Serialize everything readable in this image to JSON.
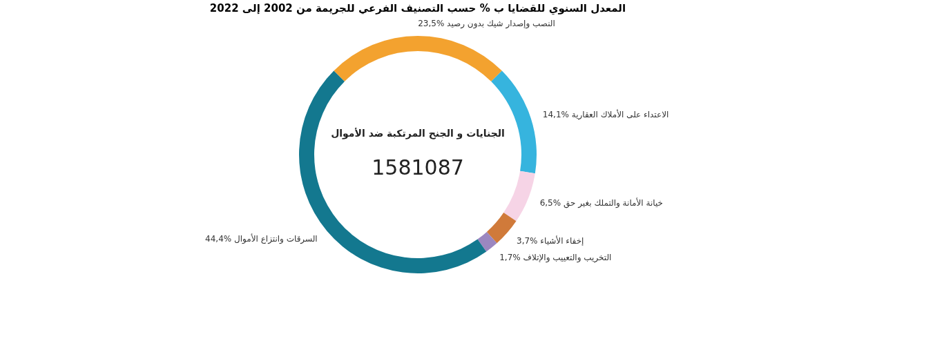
{
  "chart_data": {
    "type": "donut",
    "title": "المعدل السنوي للقضايا ب % حسب التصنيف الفرعي للجريمة من 2002 إلى 2022",
    "categories": [
      "النصب وإصدار شيك بدون رصيد",
      "الاعتداء على الأملاك العقارية",
      "خيانة الأمانة والتملك بغير حق",
      "إخفاء الأشياء",
      "التخريب والتعييب والإتلاف",
      "السرقات وانتزاع الأموال"
    ],
    "values": [
      23.5,
      14.1,
      6.5,
      3.7,
      1.7,
      44.4
    ],
    "colors": [
      "#f3a22f",
      "#36b4de",
      "#f6d4e6",
      "#d07a3a",
      "#9b87c0",
      "#13788f"
    ],
    "value_labels": [
      "23,5%",
      "14,1%",
      "6,5%",
      "3,7%",
      "1,7%",
      "44,4%"
    ],
    "annotations": [
      "الجنايات و الجنح المرتكبة ضد الأموال",
      "1581087"
    ],
    "legend": false
  }
}
